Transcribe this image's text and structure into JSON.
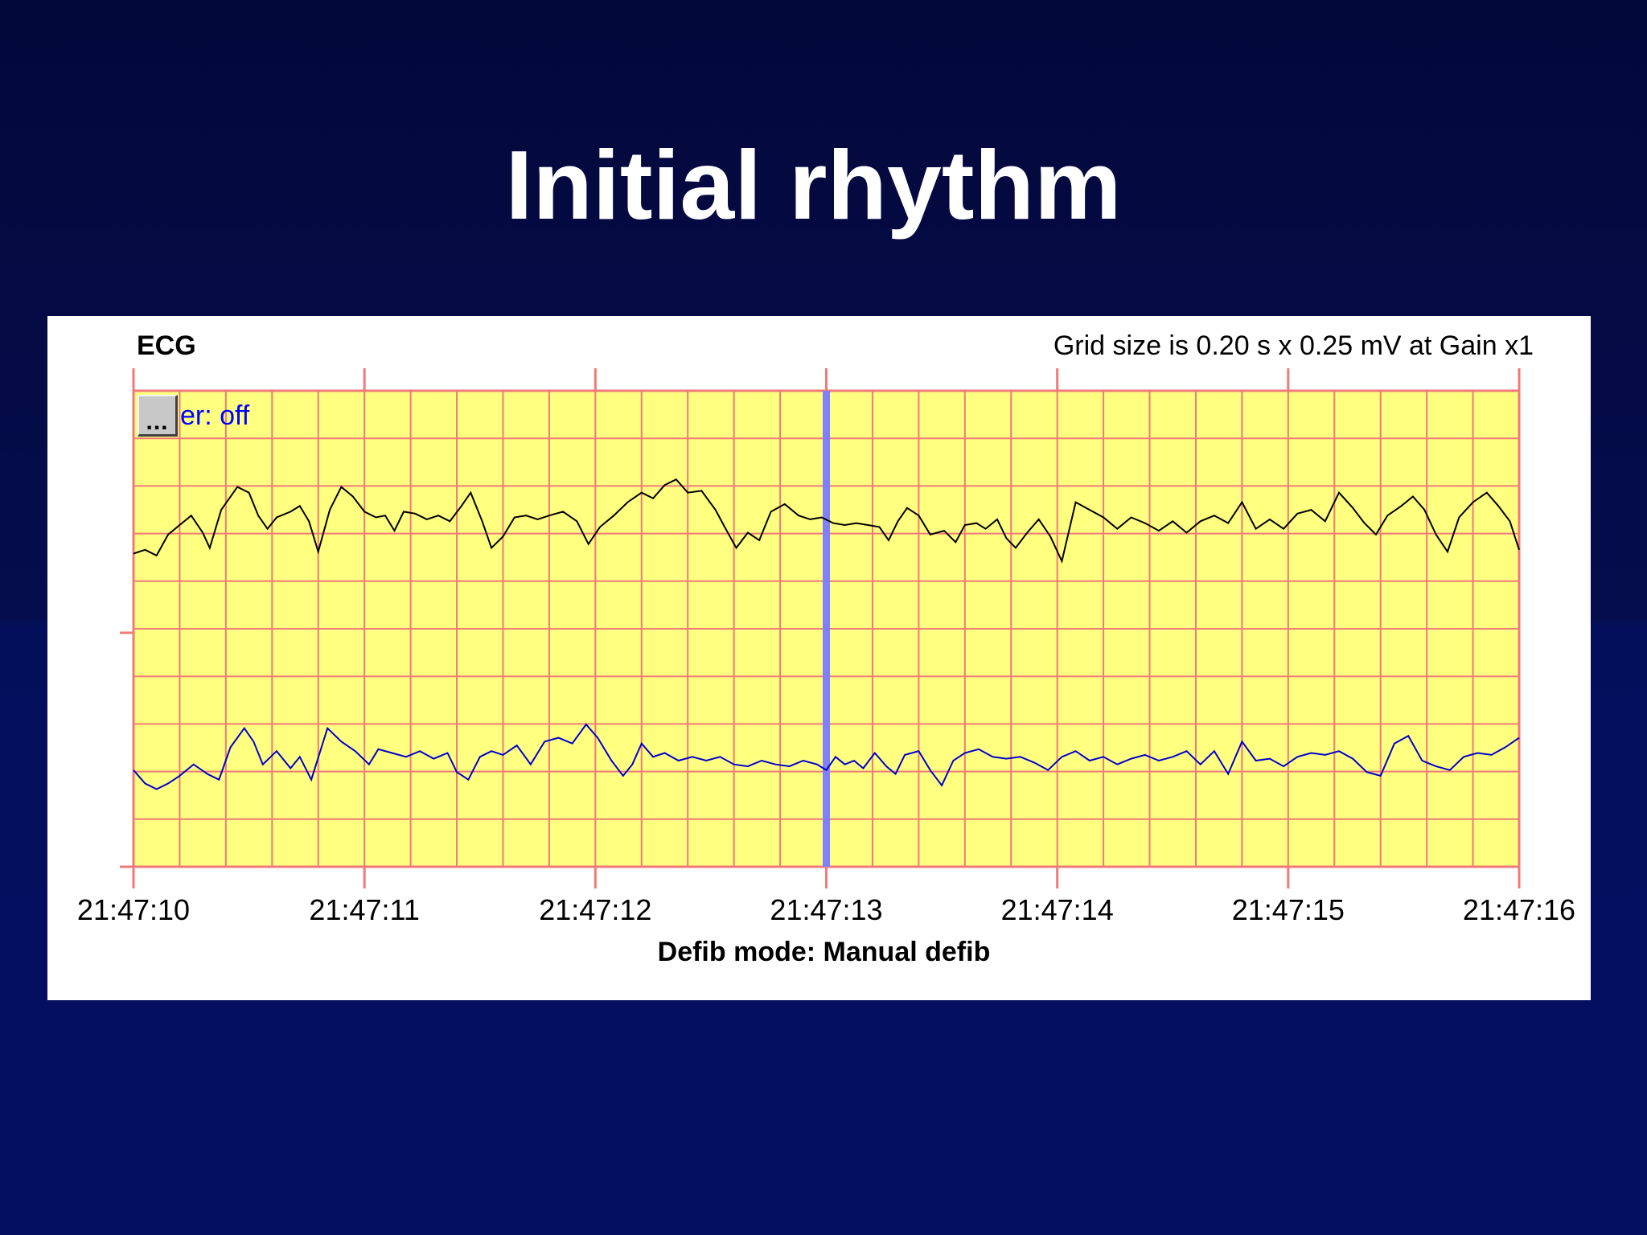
{
  "slide": {
    "title": "Initial rhythm"
  },
  "header": {
    "ecg_label": "ECG",
    "grid_info": "Grid size is 0.20 s x 0.25 mV at Gain x1"
  },
  "filter": {
    "dots": "...",
    "text": "er: off"
  },
  "footer": {
    "mode_label": "Defib mode:",
    "mode_value": "Manual defib"
  },
  "colors": {
    "background": "#050d4e",
    "grid_fill": "#ffff80",
    "grid_line": "#f07a7a",
    "trace_top": "#000000",
    "trace_bottom": "#0000cc",
    "event_marker": "#8080ff"
  },
  "chart_data": {
    "type": "line",
    "title": "ECG",
    "xlabel": "",
    "ylabel": "",
    "x_ticks": [
      "21:47:10",
      "21:47:11",
      "21:47:12",
      "21:47:13",
      "21:47:14",
      "21:47:15",
      "21:47:16"
    ],
    "x_range_s": [
      0,
      6
    ],
    "grid": true,
    "grid_size_s": 0.2,
    "grid_size_mv": 0.25,
    "event_marker_s": 3.0,
    "series": [
      {
        "values": [
          [
            0.0,
            -0.15
          ],
          [
            0.05,
            -0.13
          ],
          [
            0.1,
            -0.16
          ],
          [
            0.15,
            -0.05
          ],
          [
            0.2,
            0.0
          ],
          [
            0.25,
            0.05
          ],
          [
            0.3,
            -0.04
          ],
          [
            0.33,
            -0.12
          ],
          [
            0.38,
            0.08
          ],
          [
            0.45,
            0.2
          ],
          [
            0.5,
            0.17
          ],
          [
            0.54,
            0.05
          ],
          [
            0.58,
            -0.02
          ],
          [
            0.62,
            0.04
          ],
          [
            0.68,
            0.07
          ],
          [
            0.72,
            0.1
          ],
          [
            0.76,
            0.02
          ],
          [
            0.8,
            -0.14
          ],
          [
            0.85,
            0.08
          ],
          [
            0.9,
            0.2
          ],
          [
            0.95,
            0.15
          ],
          [
            1.0,
            0.07
          ],
          [
            1.05,
            0.04
          ],
          [
            1.09,
            0.05
          ],
          [
            1.13,
            -0.03
          ],
          [
            1.17,
            0.07
          ],
          [
            1.22,
            0.06
          ],
          [
            1.27,
            0.03
          ],
          [
            1.32,
            0.05
          ],
          [
            1.37,
            0.02
          ],
          [
            1.42,
            0.1
          ],
          [
            1.46,
            0.17
          ],
          [
            1.51,
            0.02
          ],
          [
            1.55,
            -0.12
          ],
          [
            1.6,
            -0.06
          ],
          [
            1.65,
            0.04
          ],
          [
            1.7,
            0.05
          ],
          [
            1.75,
            0.03
          ],
          [
            1.8,
            0.05
          ],
          [
            1.86,
            0.07
          ],
          [
            1.92,
            0.02
          ],
          [
            1.97,
            -0.1
          ],
          [
            2.02,
            -0.01
          ],
          [
            2.08,
            0.05
          ],
          [
            2.14,
            0.12
          ],
          [
            2.2,
            0.17
          ],
          [
            2.25,
            0.14
          ],
          [
            2.3,
            0.21
          ],
          [
            2.35,
            0.24
          ],
          [
            2.4,
            0.17
          ],
          [
            2.46,
            0.18
          ],
          [
            2.52,
            0.08
          ],
          [
            2.56,
            -0.01
          ],
          [
            2.61,
            -0.12
          ],
          [
            2.66,
            -0.04
          ],
          [
            2.71,
            -0.08
          ],
          [
            2.76,
            0.07
          ],
          [
            2.82,
            0.11
          ],
          [
            2.88,
            0.05
          ],
          [
            2.93,
            0.03
          ],
          [
            2.98,
            0.04
          ],
          [
            3.03,
            0.01
          ],
          [
            3.08,
            0.0
          ],
          [
            3.13,
            0.01
          ],
          [
            3.18,
            0.0
          ],
          [
            3.23,
            -0.01
          ],
          [
            3.27,
            -0.08
          ],
          [
            3.31,
            0.02
          ],
          [
            3.35,
            0.09
          ],
          [
            3.4,
            0.05
          ],
          [
            3.45,
            -0.05
          ],
          [
            3.51,
            -0.03
          ],
          [
            3.56,
            -0.09
          ],
          [
            3.6,
            0.0
          ],
          [
            3.65,
            0.01
          ],
          [
            3.69,
            -0.02
          ],
          [
            3.74,
            0.03
          ],
          [
            3.78,
            -0.07
          ],
          [
            3.82,
            -0.12
          ],
          [
            3.87,
            -0.04
          ],
          [
            3.92,
            0.03
          ],
          [
            3.97,
            -0.06
          ],
          [
            4.02,
            -0.19
          ],
          [
            4.08,
            0.12
          ],
          [
            4.14,
            0.08
          ],
          [
            4.2,
            0.04
          ],
          [
            4.26,
            -0.02
          ],
          [
            4.32,
            0.04
          ],
          [
            4.38,
            0.01
          ],
          [
            4.44,
            -0.03
          ],
          [
            4.5,
            0.02
          ],
          [
            4.56,
            -0.04
          ],
          [
            4.62,
            0.02
          ],
          [
            4.68,
            0.05
          ],
          [
            4.74,
            0.01
          ],
          [
            4.8,
            0.12
          ],
          [
            4.86,
            -0.02
          ],
          [
            4.92,
            0.03
          ],
          [
            4.98,
            -0.02
          ],
          [
            5.04,
            0.06
          ],
          [
            5.1,
            0.08
          ],
          [
            5.16,
            0.02
          ],
          [
            5.22,
            0.17
          ],
          [
            5.28,
            0.09
          ],
          [
            5.33,
            0.01
          ],
          [
            5.38,
            -0.05
          ],
          [
            5.43,
            0.05
          ],
          [
            5.49,
            0.1
          ],
          [
            5.54,
            0.15
          ],
          [
            5.59,
            0.08
          ],
          [
            5.64,
            -0.05
          ],
          [
            5.69,
            -0.14
          ],
          [
            5.74,
            0.04
          ],
          [
            5.8,
            0.12
          ],
          [
            5.86,
            0.17
          ],
          [
            5.91,
            0.1
          ],
          [
            5.96,
            0.02
          ],
          [
            6.0,
            -0.13
          ]
        ]
      },
      {
        "values": [
          [
            0.0,
            -0.05
          ],
          [
            0.05,
            -0.12
          ],
          [
            0.1,
            -0.15
          ],
          [
            0.15,
            -0.12
          ],
          [
            0.2,
            -0.08
          ],
          [
            0.26,
            -0.02
          ],
          [
            0.32,
            -0.07
          ],
          [
            0.37,
            -0.1
          ],
          [
            0.42,
            0.07
          ],
          [
            0.48,
            0.17
          ],
          [
            0.52,
            0.1
          ],
          [
            0.56,
            -0.02
          ],
          [
            0.62,
            0.05
          ],
          [
            0.68,
            -0.04
          ],
          [
            0.72,
            0.02
          ],
          [
            0.77,
            -0.1
          ],
          [
            0.84,
            0.17
          ],
          [
            0.9,
            0.1
          ],
          [
            0.96,
            0.05
          ],
          [
            1.02,
            -0.02
          ],
          [
            1.06,
            0.06
          ],
          [
            1.12,
            0.04
          ],
          [
            1.18,
            0.02
          ],
          [
            1.24,
            0.05
          ],
          [
            1.3,
            0.01
          ],
          [
            1.36,
            0.04
          ],
          [
            1.4,
            -0.06
          ],
          [
            1.45,
            -0.1
          ],
          [
            1.5,
            0.02
          ],
          [
            1.55,
            0.05
          ],
          [
            1.6,
            0.03
          ],
          [
            1.66,
            0.08
          ],
          [
            1.72,
            -0.02
          ],
          [
            1.78,
            0.1
          ],
          [
            1.84,
            0.12
          ],
          [
            1.9,
            0.09
          ],
          [
            1.96,
            0.19
          ],
          [
            2.01,
            0.12
          ],
          [
            2.07,
            0.0
          ],
          [
            2.12,
            -0.08
          ],
          [
            2.16,
            -0.02
          ],
          [
            2.2,
            0.09
          ],
          [
            2.25,
            0.02
          ],
          [
            2.3,
            0.04
          ],
          [
            2.36,
            0.0
          ],
          [
            2.42,
            0.02
          ],
          [
            2.48,
            0.0
          ],
          [
            2.54,
            0.02
          ],
          [
            2.6,
            -0.02
          ],
          [
            2.66,
            -0.03
          ],
          [
            2.72,
            0.0
          ],
          [
            2.78,
            -0.02
          ],
          [
            2.84,
            -0.03
          ],
          [
            2.9,
            0.0
          ],
          [
            2.96,
            -0.02
          ],
          [
            3.0,
            -0.05
          ],
          [
            3.04,
            0.02
          ],
          [
            3.08,
            -0.02
          ],
          [
            3.12,
            0.0
          ],
          [
            3.16,
            -0.04
          ],
          [
            3.21,
            0.04
          ],
          [
            3.26,
            -0.03
          ],
          [
            3.3,
            -0.07
          ],
          [
            3.34,
            0.03
          ],
          [
            3.4,
            0.05
          ],
          [
            3.45,
            -0.05
          ],
          [
            3.5,
            -0.13
          ],
          [
            3.55,
            0.0
          ],
          [
            3.6,
            0.04
          ],
          [
            3.66,
            0.06
          ],
          [
            3.72,
            0.02
          ],
          [
            3.78,
            0.01
          ],
          [
            3.84,
            0.02
          ],
          [
            3.9,
            -0.01
          ],
          [
            3.96,
            -0.05
          ],
          [
            4.02,
            0.02
          ],
          [
            4.08,
            0.05
          ],
          [
            4.14,
            0.0
          ],
          [
            4.2,
            0.02
          ],
          [
            4.26,
            -0.02
          ],
          [
            4.32,
            0.01
          ],
          [
            4.38,
            0.03
          ],
          [
            4.44,
            0.0
          ],
          [
            4.5,
            0.02
          ],
          [
            4.56,
            0.05
          ],
          [
            4.62,
            -0.02
          ],
          [
            4.68,
            0.05
          ],
          [
            4.74,
            -0.07
          ],
          [
            4.8,
            0.1
          ],
          [
            4.86,
            0.0
          ],
          [
            4.92,
            0.01
          ],
          [
            4.98,
            -0.03
          ],
          [
            5.04,
            0.02
          ],
          [
            5.1,
            0.04
          ],
          [
            5.16,
            0.03
          ],
          [
            5.22,
            0.05
          ],
          [
            5.28,
            0.01
          ],
          [
            5.34,
            -0.06
          ],
          [
            5.4,
            -0.08
          ],
          [
            5.46,
            0.09
          ],
          [
            5.52,
            0.13
          ],
          [
            5.58,
            0.0
          ],
          [
            5.64,
            -0.03
          ],
          [
            5.7,
            -0.05
          ],
          [
            5.76,
            0.02
          ],
          [
            5.82,
            0.04
          ],
          [
            5.88,
            0.03
          ],
          [
            5.94,
            0.07
          ],
          [
            6.0,
            0.12
          ]
        ]
      }
    ]
  }
}
